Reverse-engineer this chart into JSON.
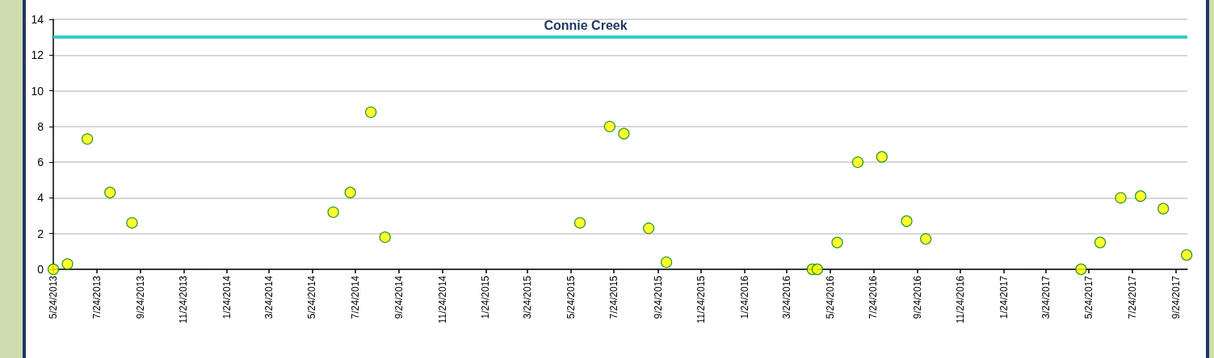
{
  "chart_data": {
    "type": "scatter",
    "title": "Connie Creek",
    "x": [
      "2013-05-24",
      "2013-06-13",
      "2013-07-11",
      "2013-08-12",
      "2013-09-12",
      "2014-06-23",
      "2014-07-17",
      "2014-08-15",
      "2014-09-04",
      "2015-06-06",
      "2015-07-18",
      "2015-08-07",
      "2015-09-11",
      "2015-10-06",
      "2016-04-29",
      "2016-05-06",
      "2016-06-03",
      "2016-07-02",
      "2016-08-05",
      "2016-09-09",
      "2016-10-06",
      "2017-05-13",
      "2017-06-09",
      "2017-07-08",
      "2017-08-05",
      "2017-09-06",
      "2017-10-09"
    ],
    "series": [
      {
        "color": "#ffff00",
        "values": [
          0,
          0.3,
          7.3,
          4.3,
          2.6,
          3.2,
          4.3,
          8.8,
          1.8,
          2.6,
          8.0,
          7.6,
          2.3,
          0.4,
          0,
          0,
          1.5,
          6.0,
          6.3,
          2.7,
          1.7,
          0,
          1.5,
          4.0,
          4.1,
          3.4,
          0.8
        ]
      }
    ],
    "xlim": [
      "2013-05-24",
      "2017-10-10"
    ],
    "xticks": [
      {
        "value": "2013-05-24",
        "label": "5/24/2013"
      },
      {
        "value": "2013-07-24",
        "label": "7/24/2013"
      },
      {
        "value": "2013-09-24",
        "label": "9/24/2013"
      },
      {
        "value": "2013-11-24",
        "label": "11/24/2013"
      },
      {
        "value": "2014-01-24",
        "label": "1/24/2014"
      },
      {
        "value": "2014-03-24",
        "label": "3/24/2014"
      },
      {
        "value": "2014-05-24",
        "label": "5/24/2014"
      },
      {
        "value": "2014-07-24",
        "label": "7/24/2014"
      },
      {
        "value": "2014-09-24",
        "label": "9/24/2014"
      },
      {
        "value": "2014-11-24",
        "label": "11/24/2014"
      },
      {
        "value": "2015-01-24",
        "label": "1/24/2015"
      },
      {
        "value": "2015-03-24",
        "label": "3/24/2015"
      },
      {
        "value": "2015-05-24",
        "label": "5/24/2015"
      },
      {
        "value": "2015-07-24",
        "label": "7/24/2015"
      },
      {
        "value": "2015-09-24",
        "label": "9/24/2015"
      },
      {
        "value": "2015-11-24",
        "label": "11/24/2015"
      },
      {
        "value": "2016-01-24",
        "label": "1/24/2016"
      },
      {
        "value": "2016-03-24",
        "label": "3/24/2016"
      },
      {
        "value": "2016-05-24",
        "label": "5/24/2016"
      },
      {
        "value": "2016-07-24",
        "label": "7/24/2016"
      },
      {
        "value": "2016-09-24",
        "label": "9/24/2016"
      },
      {
        "value": "2016-11-24",
        "label": "11/24/2016"
      },
      {
        "value": "2017-01-24",
        "label": "1/24/2017"
      },
      {
        "value": "2017-03-24",
        "label": "3/24/2017"
      },
      {
        "value": "2017-05-24",
        "label": "5/24/2017"
      },
      {
        "value": "2017-07-24",
        "label": "7/24/2017"
      },
      {
        "value": "2017-09-24",
        "label": "9/24/2017"
      }
    ],
    "ylim": [
      0,
      14
    ],
    "yticks": [
      0,
      2,
      4,
      6,
      8,
      10,
      12,
      14
    ],
    "ref_lines": [
      {
        "axis": "y",
        "value": 13,
        "color": "#33cccc"
      }
    ],
    "grid": "y",
    "marker": "circle"
  }
}
